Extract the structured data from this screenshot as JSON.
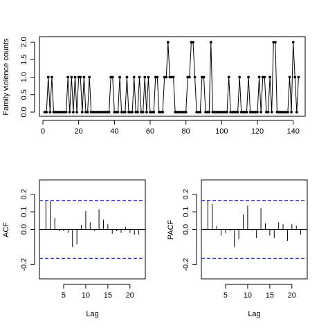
{
  "chart_data": [
    {
      "type": "line",
      "xlabel": "",
      "ylabel": "Family violence counts",
      "xlim": [
        0,
        144
      ],
      "ylim": [
        0,
        2
      ],
      "x_ticks": [
        0,
        20,
        40,
        60,
        80,
        100,
        120,
        140
      ],
      "y_ticks": [
        "0.0",
        "0.5",
        "1.0",
        "1.5",
        "2.0"
      ],
      "x": [
        1,
        2,
        3,
        4,
        5,
        6,
        7,
        8,
        9,
        10,
        11,
        12,
        13,
        14,
        15,
        16,
        17,
        18,
        19,
        20,
        21,
        22,
        23,
        24,
        25,
        26,
        27,
        28,
        29,
        30,
        31,
        32,
        33,
        34,
        35,
        36,
        37,
        38,
        39,
        40,
        41,
        42,
        43,
        44,
        45,
        46,
        47,
        48,
        49,
        50,
        51,
        52,
        53,
        54,
        55,
        56,
        57,
        58,
        59,
        60,
        61,
        62,
        63,
        64,
        65,
        66,
        67,
        68,
        69,
        70,
        71,
        72,
        73,
        74,
        75,
        76,
        77,
        78,
        79,
        80,
        81,
        82,
        83,
        84,
        85,
        86,
        87,
        88,
        89,
        90,
        91,
        92,
        93,
        94,
        95,
        96,
        97,
        98,
        99,
        100,
        101,
        102,
        103,
        104,
        105,
        106,
        107,
        108,
        109,
        110,
        111,
        112,
        113,
        114,
        115,
        116,
        117,
        118,
        119,
        120,
        121,
        122,
        123,
        124,
        125,
        126,
        127,
        128,
        129,
        130,
        131,
        132,
        133,
        134,
        135,
        136,
        137,
        138,
        139,
        140,
        141,
        142,
        143
      ],
      "values": [
        0,
        0,
        1,
        0,
        1,
        0,
        0,
        0,
        0,
        0,
        0,
        0,
        0,
        1,
        0,
        1,
        0,
        1,
        0,
        1,
        1,
        0,
        1,
        0,
        0,
        1,
        0,
        0,
        0,
        0,
        0,
        0,
        0,
        0,
        0,
        0,
        0,
        1,
        1,
        0,
        0,
        0,
        1,
        0,
        0,
        0,
        1,
        0,
        0,
        0,
        1,
        0,
        0,
        1,
        0,
        0,
        1,
        0,
        1,
        0,
        0,
        0,
        1,
        1,
        0,
        0,
        0,
        1,
        1,
        2,
        1,
        1,
        1,
        0,
        0,
        0,
        0,
        0,
        0,
        0,
        1,
        1,
        2,
        2,
        1,
        0,
        0,
        0,
        1,
        1,
        0,
        0,
        0,
        2,
        0,
        0,
        0,
        0,
        0,
        0,
        0,
        0,
        0,
        1,
        0,
        0,
        0,
        0,
        0,
        1,
        0,
        0,
        0,
        0,
        1,
        0,
        0,
        0,
        0,
        0,
        1,
        0,
        1,
        1,
        0,
        0,
        1,
        0,
        2,
        2,
        0,
        0,
        0,
        0,
        0,
        0,
        0,
        1,
        0,
        2,
        1,
        0,
        1
      ]
    },
    {
      "type": "bar",
      "xlabel": "Lag",
      "ylabel": "ACF",
      "xlim": [
        0,
        23
      ],
      "ylim": [
        -0.25,
        0.25
      ],
      "x_ticks": [
        5,
        10,
        15,
        20
      ],
      "y_ticks": [
        "-0.2",
        "0.0",
        "0.1",
        "0.2"
      ],
      "conf_limit": 0.165,
      "lags": [
        1,
        2,
        3,
        4,
        5,
        6,
        7,
        8,
        9,
        10,
        11,
        12,
        13,
        14,
        15,
        16,
        17,
        18,
        19,
        20,
        21,
        22
      ],
      "values": [
        0.16,
        0.16,
        0.065,
        -0.01,
        -0.01,
        -0.02,
        -0.1,
        -0.085,
        0.025,
        0.105,
        0.04,
        -0.01,
        0.115,
        0.055,
        0.03,
        -0.025,
        -0.01,
        -0.02,
        0.015,
        -0.02,
        -0.03,
        -0.03
      ]
    },
    {
      "type": "bar",
      "xlabel": "Lag",
      "ylabel": "PACF",
      "xlim": [
        0,
        23
      ],
      "ylim": [
        -0.25,
        0.25
      ],
      "x_ticks": [
        5,
        10,
        15,
        20
      ],
      "y_ticks": [
        "-0.2",
        "0.0",
        "0.1",
        "0.2"
      ],
      "conf_limit": 0.165,
      "lags": [
        1,
        2,
        3,
        4,
        5,
        6,
        7,
        8,
        9,
        10,
        11,
        12,
        13,
        14,
        15,
        16,
        17,
        18,
        19,
        20,
        21,
        22
      ],
      "values": [
        0.165,
        0.145,
        0.02,
        -0.035,
        -0.02,
        -0.01,
        -0.1,
        -0.055,
        0.085,
        0.135,
        -0.005,
        -0.05,
        0.12,
        0.035,
        -0.035,
        -0.05,
        0.04,
        0.03,
        -0.065,
        0.03,
        0.02,
        -0.03
      ]
    }
  ]
}
